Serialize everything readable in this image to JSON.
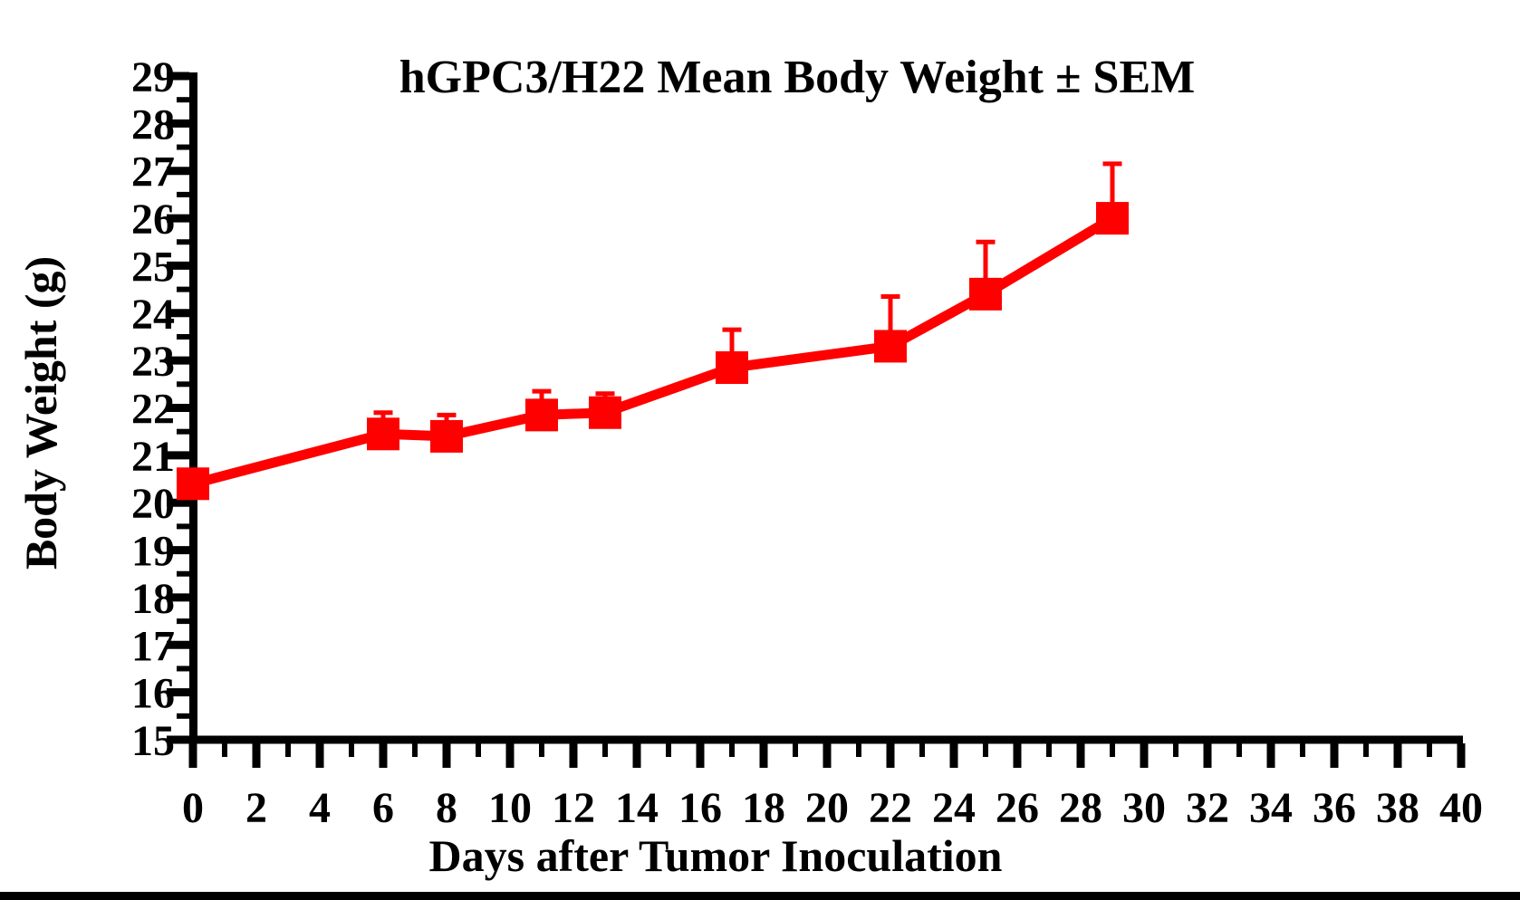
{
  "page": {
    "background_color": "#FFFFFF",
    "bottom_bar_color": "#000000"
  },
  "chart_data": {
    "type": "line",
    "title": "hGPC3/H22 Mean Body Weight ± SEM",
    "xlabel": "Days after Tumor Inoculation",
    "ylabel": "Body Weight (g)",
    "xlim": [
      0,
      40
    ],
    "ylim": [
      15,
      29
    ],
    "x_major_tick_step": 2,
    "x_minor_tick_step": 1,
    "y_major_tick_step": 1,
    "y_minor_tick_step": 0.5,
    "grid": false,
    "legend_position": "none",
    "axis_color": "#000000",
    "x_tick_labels": [
      "0",
      "2",
      "4",
      "6",
      "8",
      "10",
      "12",
      "14",
      "16",
      "18",
      "20",
      "22",
      "24",
      "26",
      "28",
      "30",
      "32",
      "34",
      "36",
      "38",
      "40"
    ],
    "y_tick_labels": [
      "15",
      "16",
      "17",
      "18",
      "19",
      "20",
      "21",
      "22",
      "23",
      "24",
      "25",
      "26",
      "27",
      "28",
      "29"
    ],
    "series": [
      {
        "name": "hGPC3/H22",
        "color": "#FF0000",
        "marker": "square",
        "error_bars": "sem-upward-only",
        "x": [
          0,
          6,
          8,
          11,
          13,
          17,
          22,
          25,
          29
        ],
        "y": [
          20.4,
          21.45,
          21.4,
          21.85,
          21.9,
          22.85,
          23.3,
          24.4,
          26.0
        ],
        "sem": [
          0,
          0.45,
          0.45,
          0.5,
          0.4,
          0.8,
          1.05,
          1.1,
          1.15
        ]
      }
    ]
  }
}
